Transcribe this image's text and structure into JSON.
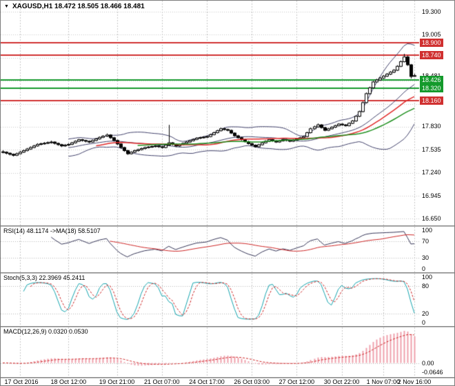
{
  "header": {
    "dropdown_icon": "▼",
    "ohlc_line": "XAGUSD,H1 18.472 18.505 18.466 18.481"
  },
  "colors": {
    "background": "#ffffff",
    "grid": "#c6c6c6",
    "candle_outline": "#000000",
    "candle_up_fill": "#ffffff",
    "candle_down_fill": "#000000",
    "bollinger": "#40406a",
    "ma_red": "#e02828",
    "ma_green": "#1e8f1e",
    "resistance": "#d03030",
    "support": "#149a2c",
    "rsi_line": "#333355",
    "rsi_ma": "#cc2222",
    "stoch_k": "#12a3ad",
    "stoch_d": "#cc2222",
    "macd_hist": "#efa0ac",
    "macd_signal": "#cc2222"
  },
  "price_axis": {
    "labels": [
      {
        "text": "19.300",
        "value": 19.3,
        "type": "plain"
      },
      {
        "text": "19.005",
        "value": 19.005,
        "type": "plain"
      },
      {
        "text": "18.900",
        "value": 18.9,
        "type": "resistance"
      },
      {
        "text": "18.740",
        "value": 18.74,
        "type": "resistance"
      },
      {
        "text": "18.481",
        "value": 18.481,
        "type": "current"
      },
      {
        "text": "18.426",
        "value": 18.426,
        "type": "support"
      },
      {
        "text": "18.320",
        "value": 18.32,
        "type": "support"
      },
      {
        "text": "18.160",
        "value": 18.16,
        "type": "resistance"
      },
      {
        "text": "17.830",
        "value": 17.83,
        "type": "plain"
      },
      {
        "text": "17.535",
        "value": 17.535,
        "type": "plain"
      },
      {
        "text": "17.240",
        "value": 17.24,
        "type": "plain"
      },
      {
        "text": "16.945",
        "value": 16.945,
        "type": "plain"
      },
      {
        "text": "16.650",
        "value": 16.65,
        "type": "plain"
      }
    ],
    "grid_values": [
      19.3,
      19.005,
      18.71,
      18.415,
      18.12,
      17.825,
      17.53,
      17.235,
      16.94,
      16.65
    ]
  },
  "time_axis": [
    {
      "label": "17 Oct 2016",
      "index": 5
    },
    {
      "label": "18 Oct 12:00",
      "index": 19
    },
    {
      "label": "19 Oct 21:00",
      "index": 33
    },
    {
      "label": "21 Oct 07:00",
      "index": 46
    },
    {
      "label": "24 Oct 17:00",
      "index": 59
    },
    {
      "label": "26 Oct 03:00",
      "index": 72
    },
    {
      "label": "27 Oct 12:00",
      "index": 85
    },
    {
      "label": "30 Oct 22:00",
      "index": 98
    },
    {
      "label": "1 Nov 07:00",
      "index": 110
    },
    {
      "label": "2 Nov 16:00",
      "index": 119
    }
  ],
  "panels": {
    "rsi": {
      "label": "RSI(14) 48.1174  ->MA(18) 58.5107",
      "scale": [
        {
          "text": "100",
          "value": 100
        },
        {
          "text": "70",
          "value": 70
        },
        {
          "text": "30",
          "value": 30
        },
        {
          "text": "0",
          "value": 0
        }
      ],
      "levels": [
        70,
        30
      ]
    },
    "stoch": {
      "label": "Stoch(5,3,3) 22.3969 45.2411",
      "scale": [
        {
          "text": "100",
          "value": 100
        },
        {
          "text": "80",
          "value": 80
        },
        {
          "text": "20",
          "value": 20
        },
        {
          "text": "0",
          "value": 0
        }
      ],
      "levels": [
        80,
        20
      ]
    },
    "macd": {
      "label": "MACD(12,26,9) 0.0320 0.0530",
      "scale": [
        {
          "text": "0.00",
          "value": 0
        },
        {
          "text": "-0.0646",
          "value": -0.0646
        }
      ]
    }
  },
  "chart_data": {
    "type": "candlestick",
    "symbol": "XAGUSD",
    "timeframe": "H1",
    "current_ohlc": {
      "open": 18.472,
      "high": 18.505,
      "low": 18.466,
      "close": 18.481
    },
    "y_axis_range": [
      16.65,
      19.3
    ],
    "x_start": "17 Oct 2016",
    "x_end": "2 Nov 16:00",
    "hlines": [
      {
        "value": 18.9,
        "type": "resistance"
      },
      {
        "value": 18.74,
        "type": "resistance"
      },
      {
        "value": 18.426,
        "type": "support"
      },
      {
        "value": 18.32,
        "type": "support"
      },
      {
        "value": 18.16,
        "type": "resistance"
      }
    ],
    "overlays": [
      "Bollinger Bands",
      "MA red",
      "MA green"
    ],
    "indicators": [
      {
        "name": "RSI",
        "params": [
          14
        ],
        "ma_period": 18,
        "last": 48.1174,
        "ma_last": 58.5107,
        "levels": [
          70,
          30
        ]
      },
      {
        "name": "Stochastic",
        "params": [
          5,
          3,
          3
        ],
        "last_k": 22.3969,
        "last_d": 45.2411,
        "levels": [
          80,
          20
        ]
      },
      {
        "name": "MACD",
        "params": [
          12,
          26,
          9
        ],
        "last": 0.032,
        "last_signal": 0.053,
        "axis_min": -0.0646
      }
    ],
    "candles": [
      [
        17.505,
        17.525,
        17.485,
        17.5
      ],
      [
        17.5,
        17.51,
        17.472,
        17.487
      ],
      [
        17.487,
        17.497,
        17.458,
        17.473
      ],
      [
        17.473,
        17.483,
        17.445,
        17.46
      ],
      [
        17.46,
        17.495,
        17.45,
        17.48
      ],
      [
        17.48,
        17.515,
        17.47,
        17.5
      ],
      [
        17.5,
        17.535,
        17.49,
        17.52
      ],
      [
        17.52,
        17.555,
        17.51,
        17.54
      ],
      [
        17.54,
        17.575,
        17.53,
        17.56
      ],
      [
        17.56,
        17.595,
        17.55,
        17.58
      ],
      [
        17.58,
        17.615,
        17.57,
        17.6
      ],
      [
        17.6,
        17.622,
        17.588,
        17.608
      ],
      [
        17.608,
        17.63,
        17.596,
        17.615
      ],
      [
        17.615,
        17.637,
        17.603,
        17.623
      ],
      [
        17.623,
        17.648,
        17.61,
        17.63
      ],
      [
        17.63,
        17.64,
        17.598,
        17.613
      ],
      [
        17.613,
        17.623,
        17.582,
        17.597
      ],
      [
        17.597,
        17.607,
        17.565,
        17.58
      ],
      [
        17.58,
        17.605,
        17.568,
        17.59
      ],
      [
        17.59,
        17.615,
        17.578,
        17.6
      ],
      [
        17.6,
        17.632,
        17.59,
        17.62
      ],
      [
        17.62,
        17.652,
        17.61,
        17.64
      ],
      [
        17.64,
        17.672,
        17.63,
        17.66
      ],
      [
        17.66,
        17.67,
        17.635,
        17.65
      ],
      [
        17.65,
        17.66,
        17.625,
        17.64
      ],
      [
        17.64,
        17.65,
        17.615,
        17.63
      ],
      [
        17.63,
        17.662,
        17.62,
        17.65
      ],
      [
        17.65,
        17.682,
        17.64,
        17.67
      ],
      [
        17.67,
        17.702,
        17.66,
        17.69
      ],
      [
        17.69,
        17.718,
        17.68,
        17.705
      ],
      [
        17.705,
        17.74,
        17.695,
        17.72
      ],
      [
        17.72,
        17.73,
        17.67,
        17.685
      ],
      [
        17.685,
        17.695,
        17.635,
        17.65
      ],
      [
        17.65,
        17.66,
        17.59,
        17.605
      ],
      [
        17.605,
        17.615,
        17.545,
        17.56
      ],
      [
        17.56,
        17.57,
        17.505,
        17.52
      ],
      [
        17.52,
        17.53,
        17.465,
        17.48
      ],
      [
        17.48,
        17.512,
        17.47,
        17.5
      ],
      [
        17.5,
        17.532,
        17.49,
        17.52
      ],
      [
        17.52,
        17.545,
        17.508,
        17.533
      ],
      [
        17.533,
        17.558,
        17.521,
        17.547
      ],
      [
        17.547,
        17.572,
        17.535,
        17.56
      ],
      [
        17.56,
        17.578,
        17.548,
        17.567
      ],
      [
        17.567,
        17.585,
        17.555,
        17.573
      ],
      [
        17.573,
        17.592,
        17.561,
        17.58
      ],
      [
        17.58,
        17.59,
        17.555,
        17.57
      ],
      [
        17.57,
        17.58,
        17.545,
        17.56
      ],
      [
        17.56,
        17.6,
        17.55,
        17.59
      ],
      [
        17.59,
        17.85,
        17.58,
        17.62
      ],
      [
        17.62,
        17.63,
        17.585,
        17.6
      ],
      [
        17.6,
        17.61,
        17.565,
        17.58
      ],
      [
        17.58,
        17.608,
        17.57,
        17.597
      ],
      [
        17.597,
        17.625,
        17.587,
        17.613
      ],
      [
        17.613,
        17.642,
        17.603,
        17.63
      ],
      [
        17.63,
        17.658,
        17.62,
        17.647
      ],
      [
        17.647,
        17.675,
        17.637,
        17.663
      ],
      [
        17.663,
        17.692,
        17.653,
        17.68
      ],
      [
        17.68,
        17.698,
        17.668,
        17.687
      ],
      [
        17.687,
        17.705,
        17.675,
        17.693
      ],
      [
        17.693,
        17.712,
        17.681,
        17.7
      ],
      [
        17.7,
        17.737,
        17.69,
        17.725
      ],
      [
        17.725,
        17.762,
        17.715,
        17.75
      ],
      [
        17.75,
        17.787,
        17.74,
        17.775
      ],
      [
        17.775,
        17.815,
        17.765,
        17.8
      ],
      [
        17.8,
        17.812,
        17.778,
        17.79
      ],
      [
        17.79,
        17.802,
        17.768,
        17.78
      ],
      [
        17.78,
        17.79,
        17.733,
        17.745
      ],
      [
        17.745,
        17.755,
        17.698,
        17.71
      ],
      [
        17.71,
        17.722,
        17.673,
        17.685
      ],
      [
        17.685,
        17.697,
        17.648,
        17.66
      ],
      [
        17.66,
        17.672,
        17.623,
        17.635
      ],
      [
        17.635,
        17.647,
        17.598,
        17.61
      ],
      [
        17.61,
        17.62,
        17.578,
        17.59
      ],
      [
        17.59,
        17.6,
        17.558,
        17.57
      ],
      [
        17.57,
        17.607,
        17.56,
        17.595
      ],
      [
        17.595,
        17.632,
        17.585,
        17.62
      ],
      [
        17.62,
        17.652,
        17.61,
        17.64
      ],
      [
        17.64,
        17.672,
        17.63,
        17.66
      ],
      [
        17.66,
        17.67,
        17.633,
        17.645
      ],
      [
        17.645,
        17.655,
        17.618,
        17.63
      ],
      [
        17.63,
        17.657,
        17.62,
        17.645
      ],
      [
        17.645,
        17.672,
        17.635,
        17.66
      ],
      [
        17.66,
        17.67,
        17.638,
        17.65
      ],
      [
        17.65,
        17.66,
        17.628,
        17.64
      ],
      [
        17.64,
        17.667,
        17.63,
        17.655
      ],
      [
        17.655,
        17.682,
        17.645,
        17.67
      ],
      [
        17.67,
        17.697,
        17.66,
        17.685
      ],
      [
        17.685,
        17.712,
        17.675,
        17.7
      ],
      [
        17.7,
        17.762,
        17.69,
        17.75
      ],
      [
        17.75,
        17.815,
        17.74,
        17.8
      ],
      [
        17.8,
        17.84,
        17.788,
        17.825
      ],
      [
        17.825,
        17.868,
        17.813,
        17.85
      ],
      [
        17.85,
        17.86,
        17.803,
        17.815
      ],
      [
        17.815,
        17.825,
        17.768,
        17.78
      ],
      [
        17.78,
        17.812,
        17.77,
        17.8
      ],
      [
        17.8,
        17.832,
        17.79,
        17.82
      ],
      [
        17.82,
        17.852,
        17.81,
        17.84
      ],
      [
        17.84,
        17.872,
        17.83,
        17.86
      ],
      [
        17.86,
        17.87,
        17.838,
        17.85
      ],
      [
        17.85,
        17.86,
        17.828,
        17.84
      ],
      [
        17.84,
        17.882,
        17.83,
        17.87
      ],
      [
        17.87,
        17.912,
        17.86,
        17.9
      ],
      [
        17.9,
        17.972,
        17.89,
        17.96
      ],
      [
        17.96,
        18.032,
        17.95,
        18.02
      ],
      [
        18.02,
        18.15,
        18.01,
        18.135
      ],
      [
        18.135,
        18.265,
        18.125,
        18.25
      ],
      [
        18.25,
        18.34,
        18.24,
        18.325
      ],
      [
        18.325,
        18.415,
        18.315,
        18.4
      ],
      [
        18.4,
        18.44,
        18.388,
        18.425
      ],
      [
        18.425,
        18.465,
        18.413,
        18.45
      ],
      [
        18.45,
        18.49,
        18.438,
        18.475
      ],
      [
        18.475,
        18.515,
        18.463,
        18.5
      ],
      [
        18.5,
        18.54,
        18.488,
        18.525
      ],
      [
        18.525,
        18.565,
        18.513,
        18.55
      ],
      [
        18.55,
        18.615,
        18.54,
        18.6
      ],
      [
        18.6,
        18.675,
        18.59,
        18.66
      ],
      [
        18.66,
        18.76,
        18.65,
        18.72
      ],
      [
        18.72,
        18.74,
        18.605,
        18.62
      ],
      [
        18.62,
        18.63,
        18.445,
        18.47
      ],
      [
        18.472,
        18.505,
        18.466,
        18.481
      ]
    ]
  }
}
